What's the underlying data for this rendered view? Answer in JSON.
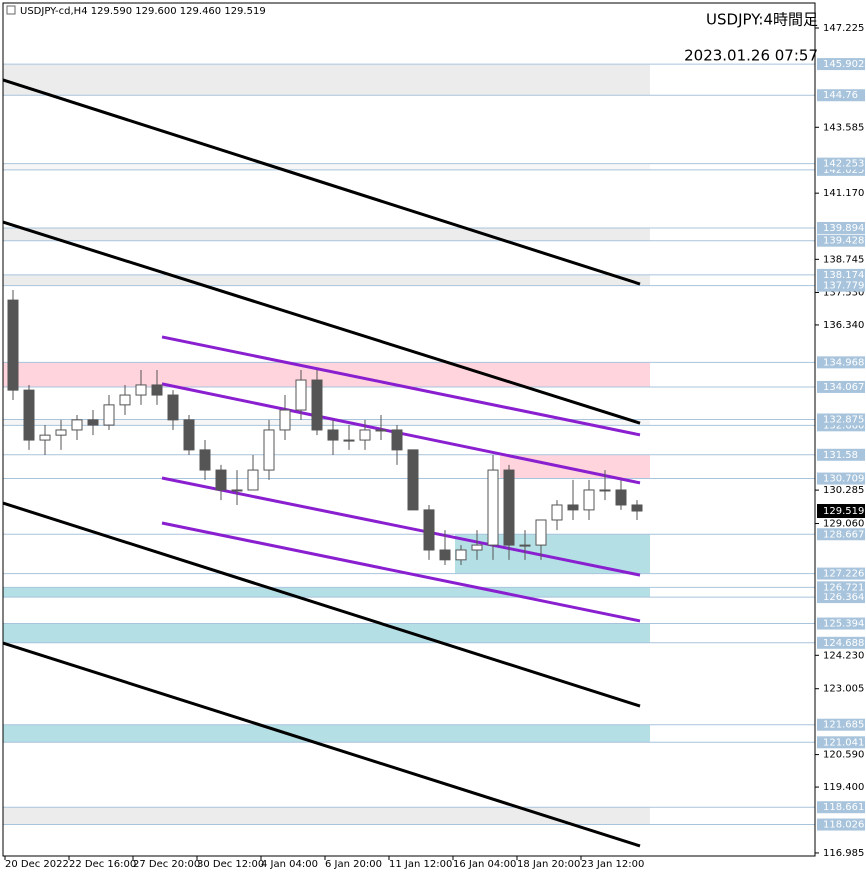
{
  "chart_data": {
    "type": "candlestick",
    "header": "USDJPY-cd,H4  129.590 129.600 129.460 129.519",
    "title": "USDJPY:4時間足",
    "subtitle": "2023.01.26 07:57",
    "xlim": [
      -0.5,
      202.5
    ],
    "ylim": [
      116.873,
      148.141
    ],
    "xticks": [
      {
        "value": 0,
        "label": "20 Dec 2022"
      },
      {
        "value": 16,
        "label": "22 Dec 16:00"
      },
      {
        "value": 32,
        "label": "27 Dec 20:00"
      },
      {
        "value": 48,
        "label": "30 Dec 12:00"
      },
      {
        "value": 64,
        "label": "4 Jan 04:00"
      },
      {
        "value": 80,
        "label": "6 Jan 20:00"
      },
      {
        "value": 96,
        "label": "11 Jan 12:00"
      },
      {
        "value": 112,
        "label": "16 Jan 04:00"
      },
      {
        "value": 128,
        "label": "18 Jan 20:00"
      },
      {
        "value": 144,
        "label": "23 Jan 12:00"
      }
    ],
    "yticks": [
      147.225,
      143.585,
      {
        "value": 141.17,
        "label": "141.170"
      },
      138.745,
      {
        "value": 137.53,
        "label": "137.530"
      },
      {
        "value": 136.34,
        "label": "136.340"
      },
      130.285,
      {
        "value": 129.06,
        "label": "129.060"
      },
      {
        "value": 124.23,
        "label": "124.230"
      },
      123.005,
      {
        "value": 120.59,
        "label": "120.590"
      },
      {
        "value": 119.4,
        "label": "119.400"
      },
      116.985
    ],
    "last": 129.519,
    "zone_end": 161.25,
    "zones": [
      {
        "low": 144.76,
        "high": 145.902,
        "from": -0.5,
        "color": "#ececec"
      },
      {
        "low": 142.025,
        "high": 142.253,
        "from": -0.5,
        "color": "#f6f6f6"
      },
      {
        "low": 139.428,
        "high": 139.894,
        "from": -0.5,
        "color": "#ececec"
      },
      {
        "low": 137.779,
        "high": 138.174,
        "from": -0.5,
        "color": "#ececec"
      },
      {
        "low": 134.067,
        "high": 134.968,
        "from": -0.5,
        "color": "#ffd4dd"
      },
      {
        "low": {
          "value": 132.66,
          "label": "132.660"
        },
        "high": 132.875,
        "from": -0.5,
        "color": "#f6f6f6"
      },
      {
        "low": 130.709,
        "high": 131.58,
        "from": 123.75,
        "color": "#ffd4dd"
      },
      {
        "low": 127.226,
        "high": 128.667,
        "from": 112.5,
        "color": "#b4dfe5"
      },
      {
        "low": 126.364,
        "high": 126.721,
        "from": -0.5,
        "color": "#b4dfe5"
      },
      {
        "low": 124.688,
        "high": 125.394,
        "from": -0.5,
        "color": "#b4dfe5"
      },
      {
        "low": 121.041,
        "high": 121.685,
        "from": -0.5,
        "color": "#b4dfe5"
      },
      {
        "low": 118.026,
        "high": 118.661,
        "from": -0.5,
        "color": "#ececec"
      }
    ],
    "trendlines": [
      {
        "color": "#000000",
        "x": [
          -0.5,
          158.75
        ],
        "y": [
          145.32,
          137.84
        ]
      },
      {
        "color": "#000000",
        "x": [
          -0.5,
          158.75
        ],
        "y": [
          140.11,
          132.74
        ]
      },
      {
        "color": "#000000",
        "x": [
          -0.5,
          158.75
        ],
        "y": [
          129.81,
          122.37
        ]
      },
      {
        "color": "#000000",
        "x": [
          -0.5,
          158.75
        ],
        "y": [
          124.68,
          117.24
        ]
      },
      {
        "color": "#8a1fd0",
        "x": [
          39.25,
          158.75
        ],
        "y": [
          135.9,
          132.31
        ]
      },
      {
        "color": "#8a1fd0",
        "x": [
          39.25,
          158.75
        ],
        "y": [
          134.18,
          130.55
        ]
      },
      {
        "color": "#8a1fd0",
        "x": [
          39.25,
          158.75
        ],
        "y": [
          130.73,
          127.17
        ]
      },
      {
        "color": "#8a1fd0",
        "x": [
          39.25,
          158.75
        ],
        "y": [
          129.08,
          125.49
        ]
      }
    ],
    "x": [
      2,
      6,
      10,
      14,
      18,
      22,
      26,
      30,
      34,
      38,
      42,
      46,
      50,
      54,
      58,
      62,
      66,
      70,
      74,
      78,
      82,
      86,
      90,
      94,
      98,
      102,
      106,
      110,
      114,
      118,
      122,
      126,
      130,
      134,
      138,
      142,
      146,
      150,
      154,
      158
    ],
    "open": [
      137.25,
      133.95,
      132.12,
      132.3,
      132.49,
      132.86,
      132.67,
      133.41,
      133.77,
      134.14,
      133.77,
      132.86,
      131.76,
      131.02,
      130.29,
      130.29,
      131.02,
      132.49,
      133.22,
      134.32,
      132.49,
      132.12,
      132.12,
      132.49,
      132.49,
      131.76,
      129.56,
      128.09,
      127.73,
      128.09,
      128.27,
      131.02,
      128.27,
      128.27,
      129.19,
      129.74,
      129.56,
      130.29,
      130.29,
      129.74
    ],
    "high": [
      137.62,
      134.14,
      132.67,
      132.86,
      133.04,
      133.22,
      133.77,
      134.14,
      134.69,
      134.69,
      133.95,
      133.04,
      132.12,
      131.21,
      131.02,
      131.57,
      132.86,
      133.77,
      134.69,
      134.69,
      132.86,
      132.67,
      132.86,
      133.04,
      132.67,
      131.76,
      129.74,
      128.82,
      128.27,
      128.82,
      131.57,
      131.21,
      128.82,
      129.19,
      129.92,
      130.66,
      130.66,
      131.02,
      130.66,
      129.92
    ],
    "low": [
      133.59,
      131.76,
      131.57,
      131.76,
      132.12,
      132.3,
      132.49,
      133.04,
      133.41,
      133.41,
      132.49,
      131.57,
      130.66,
      129.92,
      129.74,
      130.29,
      130.66,
      132.12,
      132.86,
      132.3,
      131.57,
      131.76,
      131.76,
      132.12,
      131.21,
      129.56,
      127.73,
      127.54,
      127.54,
      127.73,
      127.73,
      127.73,
      127.73,
      127.73,
      128.82,
      129.19,
      129.19,
      129.92,
      129.56,
      129.19
    ],
    "close": [
      133.95,
      132.12,
      132.3,
      132.49,
      132.86,
      132.67,
      133.41,
      133.77,
      134.14,
      133.77,
      132.86,
      131.76,
      131.02,
      130.29,
      130.29,
      131.02,
      132.49,
      133.22,
      134.32,
      132.49,
      132.12,
      132.12,
      132.49,
      132.49,
      131.76,
      129.56,
      128.09,
      127.73,
      128.09,
      128.27,
      131.02,
      128.27,
      128.27,
      129.19,
      129.74,
      129.56,
      130.29,
      130.29,
      129.74,
      129.519
    ],
    "up_color": "#ffffff",
    "down_color": "#555555",
    "wick_color": "#555555"
  }
}
